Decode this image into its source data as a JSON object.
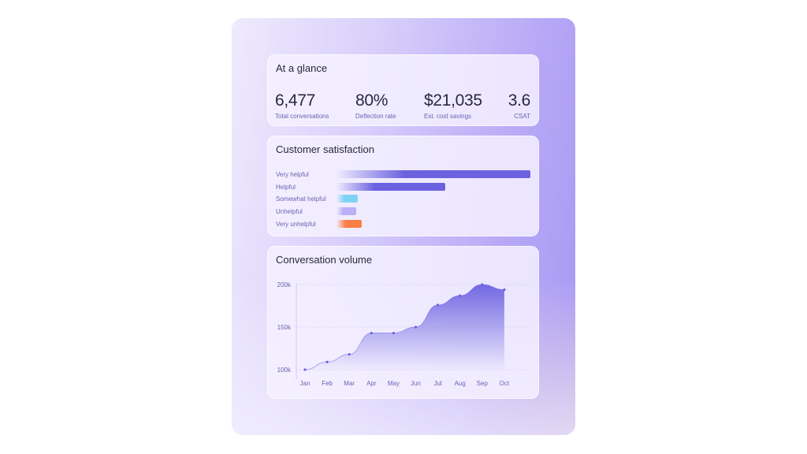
{
  "glance": {
    "title": "At a glance",
    "stats": [
      {
        "value": "6,477",
        "label": "Total conversations"
      },
      {
        "value": "80%",
        "label": "Deflection rate"
      },
      {
        "value": "$21,035",
        "label": "Est. cost savings"
      },
      {
        "value": "3.6",
        "label": "CSAT"
      }
    ]
  },
  "satisfaction": {
    "title": "Customer satisfaction",
    "items": [
      {
        "label": "Very helpful",
        "fill_pct": 100,
        "color": "#6c62e0"
      },
      {
        "label": "Helpful",
        "fill_pct": 56,
        "color": "#6c62e0"
      },
      {
        "label": "Somewhat helpful",
        "fill_pct": 11,
        "color": "#7fd3f2"
      },
      {
        "label": "Unhelpful",
        "fill_pct": 10,
        "color": "#b9b0f5"
      },
      {
        "label": "Very unhelpful",
        "fill_pct": 13,
        "color": "#fb7e45"
      }
    ]
  },
  "chart_data": {
    "type": "area",
    "title": "Conversation volume",
    "categories": [
      "Jan",
      "Feb",
      "Mar",
      "Apr",
      "May",
      "Jun",
      "Jul",
      "Aug",
      "Sep",
      "Oct"
    ],
    "values": [
      100000,
      109000,
      118000,
      143000,
      143000,
      150000,
      176000,
      187000,
      200000,
      194000
    ],
    "yticks": [
      {
        "value": 100000,
        "label": "100k"
      },
      {
        "value": 150000,
        "label": "150k"
      },
      {
        "value": 200000,
        "label": "200k"
      }
    ],
    "ylim": [
      100000,
      200000
    ],
    "grid": true,
    "color": "#6c62e0"
  }
}
